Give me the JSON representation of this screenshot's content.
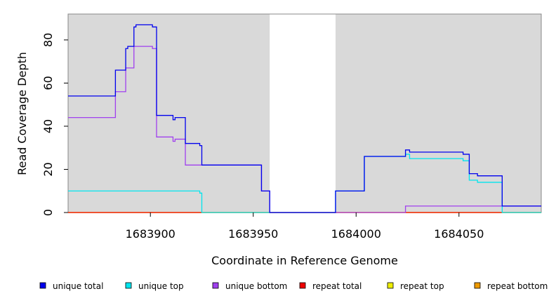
{
  "chart_data": {
    "type": "line",
    "style": "step",
    "xlabel": "Coordinate in Reference Genome",
    "ylabel": "Read Coverage Depth",
    "xlim": [
      1683860,
      1684090
    ],
    "ylim": [
      0,
      92
    ],
    "x_ticks": [
      1683900,
      1683950,
      1684000,
      1684050
    ],
    "x_tick_labels": [
      "1683900",
      "1683950",
      "1684000",
      "1684050"
    ],
    "y_ticks": [
      0,
      20,
      40,
      60,
      80
    ],
    "y_tick_labels": [
      "0",
      "20",
      "40",
      "60",
      "80"
    ],
    "background": "#d9d9d9",
    "gap_regions": [
      [
        1683958,
        1683990
      ]
    ],
    "legend_position": "bottom",
    "series": [
      {
        "name": "unique total",
        "color": "#0000ee",
        "points": [
          [
            1683860,
            54
          ],
          [
            1683883,
            66
          ],
          [
            1683888,
            76
          ],
          [
            1683889,
            77
          ],
          [
            1683892,
            86
          ],
          [
            1683893,
            87
          ],
          [
            1683901,
            86
          ],
          [
            1683903,
            45
          ],
          [
            1683911,
            43
          ],
          [
            1683912,
            44
          ],
          [
            1683917,
            32
          ],
          [
            1683924,
            31
          ],
          [
            1683925,
            22
          ],
          [
            1683954,
            10
          ],
          [
            1683958,
            0
          ],
          [
            1683990,
            10
          ],
          [
            1684004,
            26
          ],
          [
            1684024,
            29
          ],
          [
            1684026,
            28
          ],
          [
            1684052,
            27
          ],
          [
            1684055,
            18
          ],
          [
            1684059,
            17
          ],
          [
            1684071,
            3
          ],
          [
            1684090,
            3
          ]
        ]
      },
      {
        "name": "unique top",
        "color": "#00e5ee",
        "points": [
          [
            1683860,
            10
          ],
          [
            1683924,
            9
          ],
          [
            1683925,
            0
          ],
          [
            1683990,
            10
          ],
          [
            1684004,
            26
          ],
          [
            1684024,
            27
          ],
          [
            1684026,
            25
          ],
          [
            1684052,
            24
          ],
          [
            1684055,
            15
          ],
          [
            1684059,
            14
          ],
          [
            1684071,
            0
          ],
          [
            1684090,
            0
          ]
        ]
      },
      {
        "name": "unique bottom",
        "color": "#a040ee",
        "points": [
          [
            1683860,
            44
          ],
          [
            1683883,
            56
          ],
          [
            1683888,
            67
          ],
          [
            1683889,
            67
          ],
          [
            1683892,
            77
          ],
          [
            1683893,
            77
          ],
          [
            1683901,
            76
          ],
          [
            1683903,
            35
          ],
          [
            1683911,
            33
          ],
          [
            1683912,
            34
          ],
          [
            1683917,
            22
          ],
          [
            1683925,
            22
          ],
          [
            1683954,
            10
          ],
          [
            1683958,
            0
          ],
          [
            1684024,
            3
          ],
          [
            1684090,
            3
          ]
        ]
      },
      {
        "name": "repeat total",
        "color": "#ee0000",
        "points": [
          [
            1683860,
            0
          ],
          [
            1684090,
            0
          ]
        ]
      },
      {
        "name": "repeat top",
        "color": "#eeee00",
        "points": [
          [
            1683860,
            0
          ],
          [
            1684090,
            0
          ]
        ]
      },
      {
        "name": "repeat bottom",
        "color": "#ee9a00",
        "points": [
          [
            1683860,
            0
          ],
          [
            1684090,
            0
          ]
        ]
      }
    ]
  }
}
